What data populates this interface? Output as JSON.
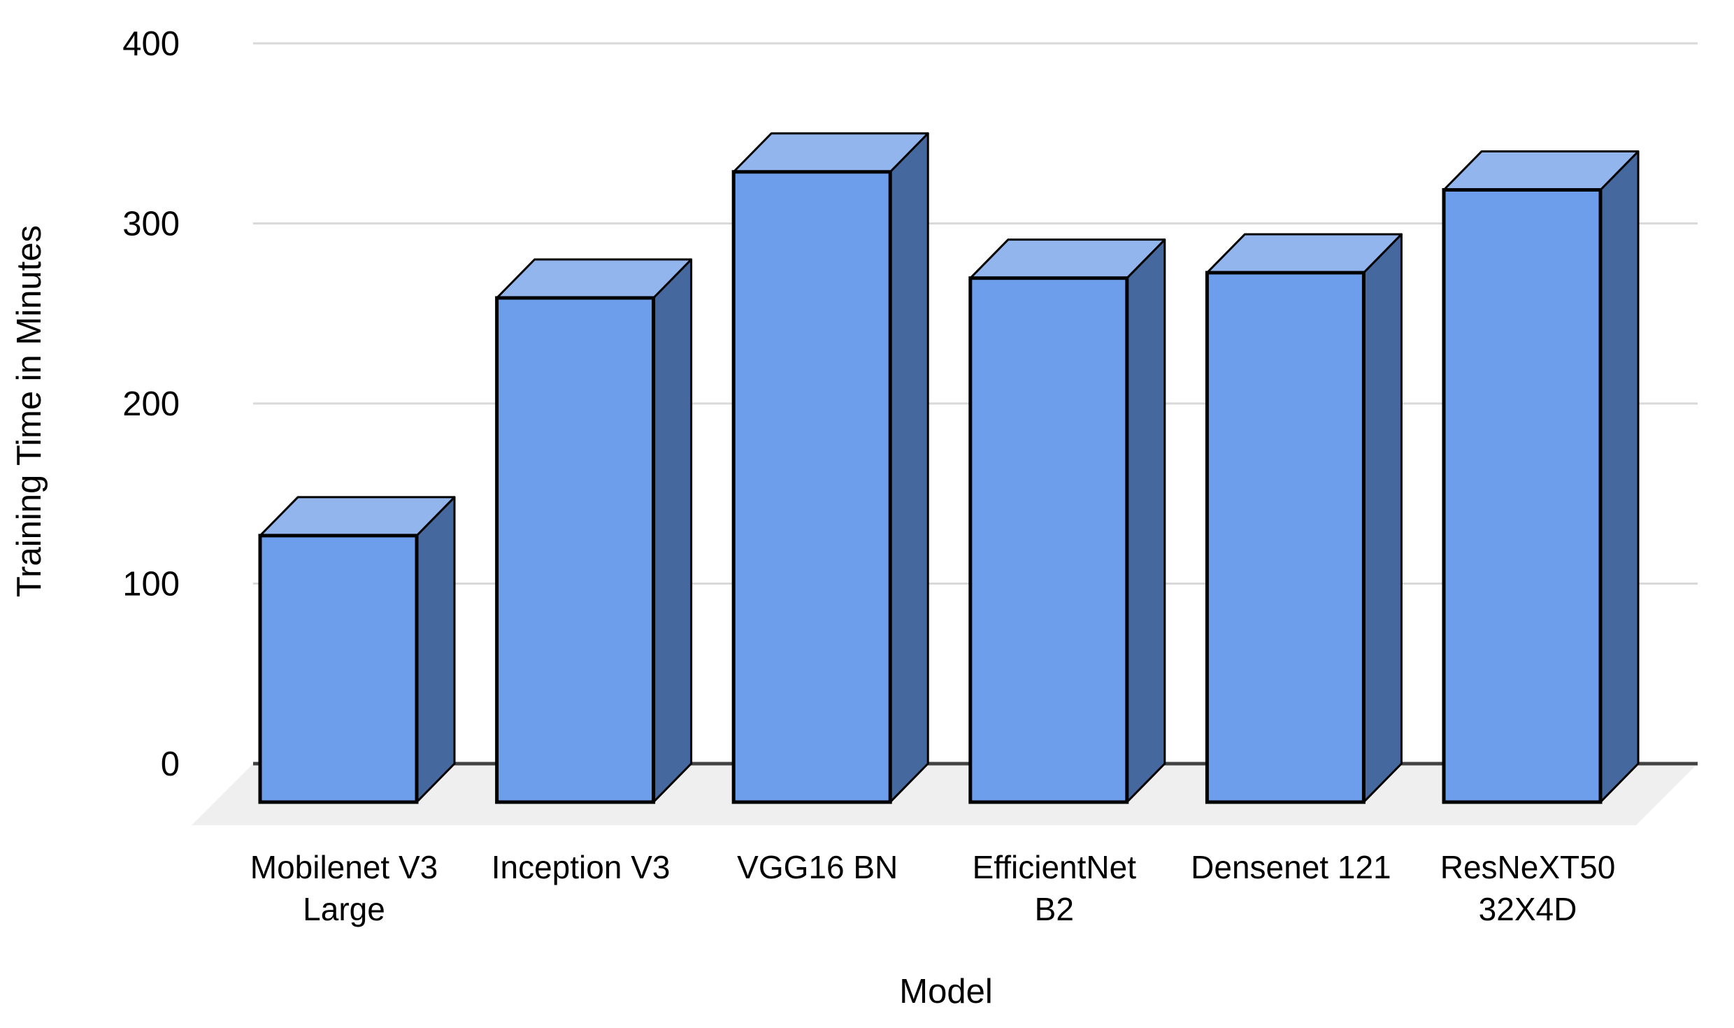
{
  "chart_data": {
    "type": "bar",
    "style": "3d-column",
    "title": "",
    "xlabel": "Model",
    "ylabel": "Training Time in Minutes",
    "categories": [
      "Mobilenet V3 Large",
      "Inception V3",
      "VGG16 BN",
      "EfficientNet B2",
      "Densenet 121",
      "ResNeXT50 32X4D"
    ],
    "category_label_lines": [
      [
        "Mobilenet V3",
        "Large"
      ],
      [
        "Inception V3"
      ],
      [
        "VGG16 BN"
      ],
      [
        "EfficientNet",
        "B2"
      ],
      [
        "Densenet 121"
      ],
      [
        "ResNeXT50",
        "32X4D"
      ]
    ],
    "values": [
      148,
      280,
      350,
      291,
      294,
      340
    ],
    "y_ticks": [
      0,
      100,
      200,
      300,
      400
    ],
    "ylim": [
      0,
      400
    ],
    "grid": true,
    "legend_position": "none",
    "colors": {
      "bar_front": "#6d9eeb",
      "bar_top": "#93b5ee",
      "bar_side": "#45689e",
      "bar_outline": "#000000",
      "gridline": "#d9d9d9",
      "axis_line": "#424242",
      "floor": "#efefef",
      "text": "#000000",
      "background": "#ffffff"
    }
  }
}
